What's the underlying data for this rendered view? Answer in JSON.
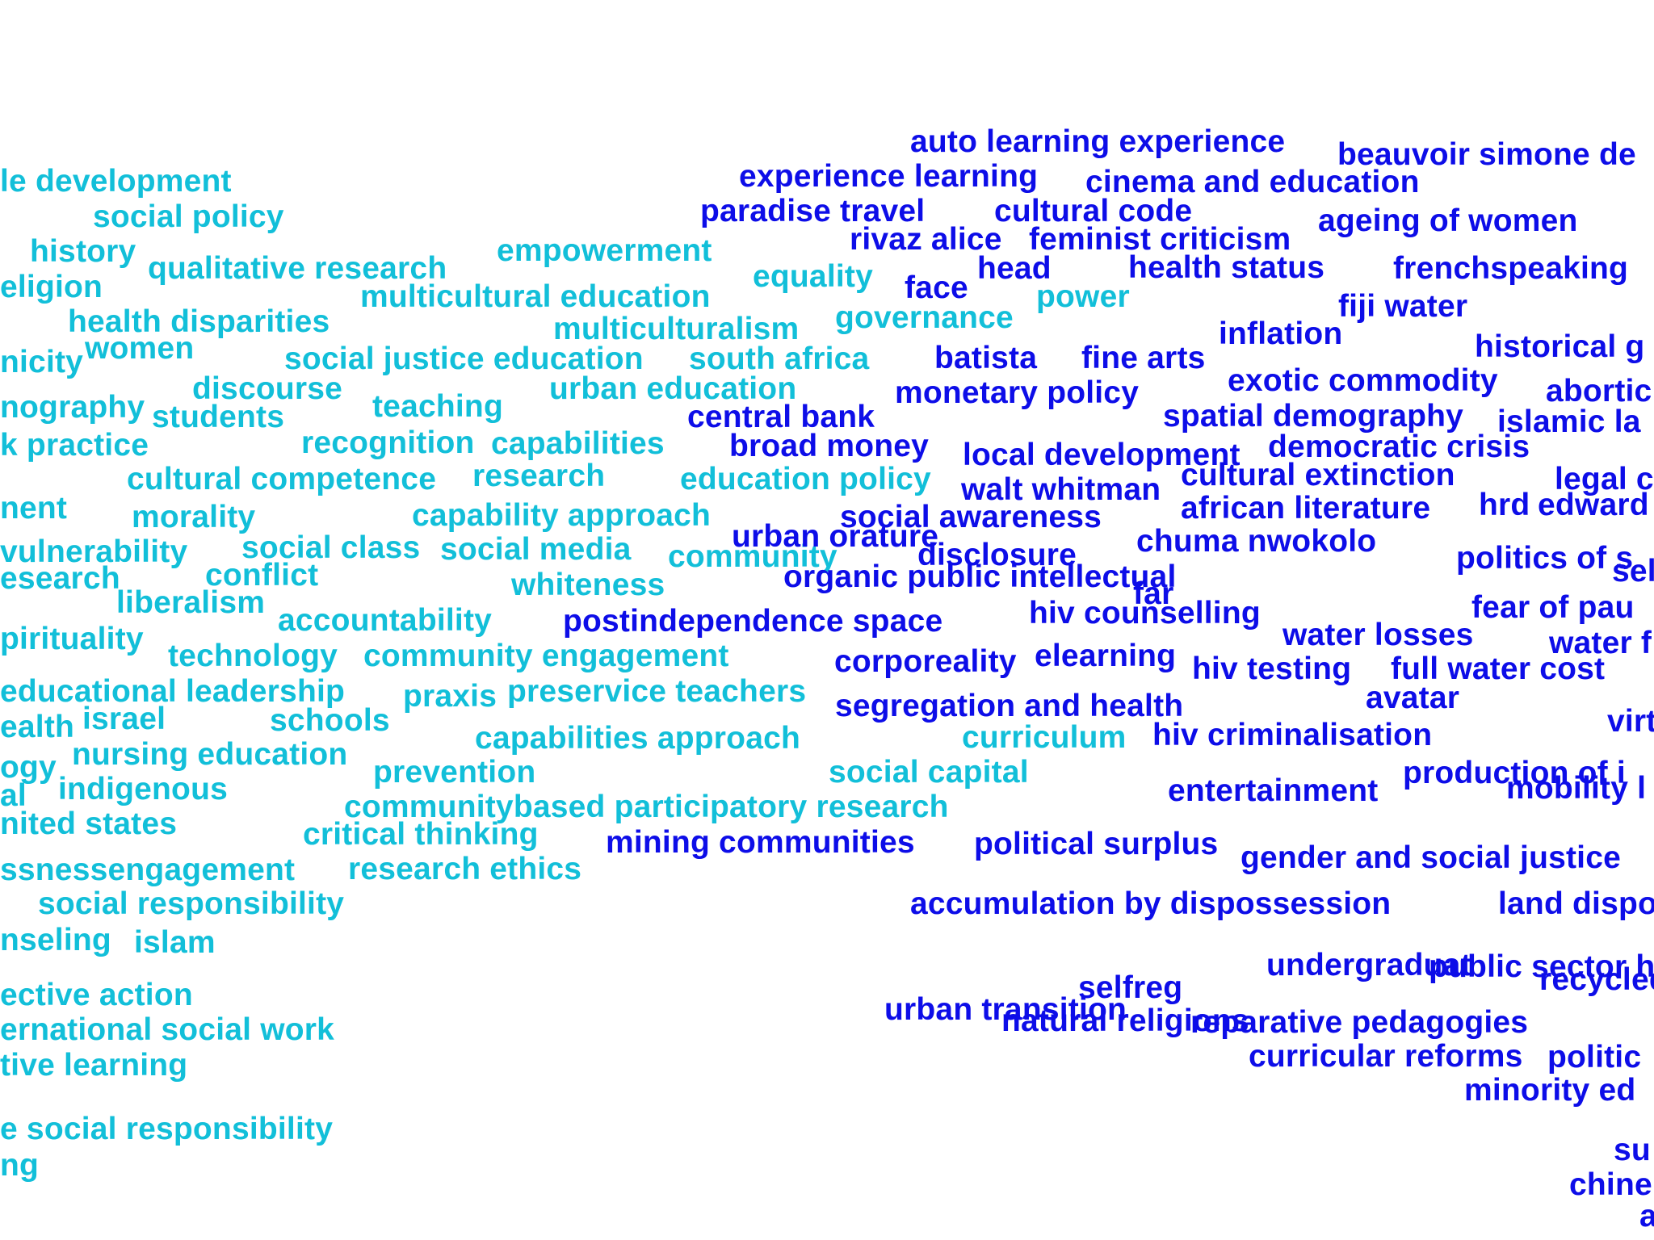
{
  "colors": {
    "cluster_a": "#12bfd9",
    "cluster_b": "#0d0de8"
  },
  "words": [
    {
      "text": "le development",
      "c": "a"
    },
    {
      "text": "social policy",
      "c": "a"
    },
    {
      "text": "history",
      "c": "a"
    },
    {
      "text": "qualitative research",
      "c": "a"
    },
    {
      "text": "empowerment",
      "c": "a"
    },
    {
      "text": "eligion",
      "c": "a"
    },
    {
      "text": "multicultural education",
      "c": "a"
    },
    {
      "text": "equality",
      "c": "a"
    },
    {
      "text": "health disparities",
      "c": "a"
    },
    {
      "text": "women",
      "c": "a"
    },
    {
      "text": "multiculturalism",
      "c": "a"
    },
    {
      "text": "governance",
      "c": "a"
    },
    {
      "text": "power",
      "c": "a"
    },
    {
      "text": "nicity",
      "c": "a"
    },
    {
      "text": "social justice education",
      "c": "a"
    },
    {
      "text": "south africa",
      "c": "a"
    },
    {
      "text": "discourse",
      "c": "a"
    },
    {
      "text": "urban education",
      "c": "a"
    },
    {
      "text": "nography",
      "c": "a"
    },
    {
      "text": "teaching",
      "c": "a"
    },
    {
      "text": "students",
      "c": "a"
    },
    {
      "text": "recognition",
      "c": "a"
    },
    {
      "text": "capabilities",
      "c": "a"
    },
    {
      "text": "k practice",
      "c": "a"
    },
    {
      "text": "cultural competence",
      "c": "a"
    },
    {
      "text": "research",
      "c": "a"
    },
    {
      "text": "education policy",
      "c": "a"
    },
    {
      "text": "nent",
      "c": "a"
    },
    {
      "text": "morality",
      "c": "a"
    },
    {
      "text": "capability approach",
      "c": "a"
    },
    {
      "text": "vulnerability",
      "c": "a"
    },
    {
      "text": "social class",
      "c": "a"
    },
    {
      "text": "social media",
      "c": "a"
    },
    {
      "text": "community",
      "c": "a"
    },
    {
      "text": "esearch",
      "c": "a"
    },
    {
      "text": "conflict",
      "c": "a"
    },
    {
      "text": "whiteness",
      "c": "a"
    },
    {
      "text": "liberalism",
      "c": "a"
    },
    {
      "text": "accountability",
      "c": "a"
    },
    {
      "text": "pirituality",
      "c": "a"
    },
    {
      "text": "technology",
      "c": "a"
    },
    {
      "text": "community engagement",
      "c": "a"
    },
    {
      "text": "educational leadership",
      "c": "a"
    },
    {
      "text": "praxis",
      "c": "a"
    },
    {
      "text": "preservice teachers",
      "c": "a"
    },
    {
      "text": "ealth",
      "c": "a"
    },
    {
      "text": "israel",
      "c": "a"
    },
    {
      "text": "schools",
      "c": "a"
    },
    {
      "text": "capabilities approach",
      "c": "a"
    },
    {
      "text": "curriculum",
      "c": "a"
    },
    {
      "text": "ogy",
      "c": "a"
    },
    {
      "text": "nursing education",
      "c": "a"
    },
    {
      "text": "prevention",
      "c": "a"
    },
    {
      "text": "social capital",
      "c": "a"
    },
    {
      "text": "al",
      "c": "a"
    },
    {
      "text": "indigenous",
      "c": "a"
    },
    {
      "text": "communitybased participatory research",
      "c": "a"
    },
    {
      "text": "nited states",
      "c": "a"
    },
    {
      "text": "critical thinking",
      "c": "a"
    },
    {
      "text": "ssnessengagement",
      "c": "a"
    },
    {
      "text": "research ethics",
      "c": "a"
    },
    {
      "text": "social responsibility",
      "c": "a"
    },
    {
      "text": "nseling",
      "c": "a"
    },
    {
      "text": "islam",
      "c": "a"
    },
    {
      "text": "ective action",
      "c": "a"
    },
    {
      "text": "ernational social work",
      "c": "a"
    },
    {
      "text": "tive learning",
      "c": "a"
    },
    {
      "text": "e social responsibility",
      "c": "a"
    },
    {
      "text": "ng",
      "c": "a"
    },
    {
      "text": "auto learning experience",
      "c": "b"
    },
    {
      "text": "beauvoir simone de",
      "c": "b"
    },
    {
      "text": "experience learning",
      "c": "b"
    },
    {
      "text": "cinema and education",
      "c": "b"
    },
    {
      "text": "paradise travel",
      "c": "b"
    },
    {
      "text": "cultural code",
      "c": "b"
    },
    {
      "text": "rivaz alice",
      "c": "b"
    },
    {
      "text": "feminist criticism",
      "c": "b"
    },
    {
      "text": "ageing of women",
      "c": "b"
    },
    {
      "text": "head",
      "c": "b"
    },
    {
      "text": "health status",
      "c": "b"
    },
    {
      "text": "face",
      "c": "b"
    },
    {
      "text": "frenchspeaking",
      "c": "b"
    },
    {
      "text": "fiji water",
      "c": "b"
    },
    {
      "text": "inflation",
      "c": "b"
    },
    {
      "text": "batista",
      "c": "b"
    },
    {
      "text": "fine arts",
      "c": "b"
    },
    {
      "text": "historical g",
      "c": "b"
    },
    {
      "text": "exotic commodity",
      "c": "b"
    },
    {
      "text": "monetary policy",
      "c": "b"
    },
    {
      "text": "abortic",
      "c": "b"
    },
    {
      "text": "central bank",
      "c": "b"
    },
    {
      "text": "spatial demography",
      "c": "b"
    },
    {
      "text": "islamic la",
      "c": "b"
    },
    {
      "text": "broad money",
      "c": "b"
    },
    {
      "text": "local development",
      "c": "b"
    },
    {
      "text": "democratic crisis",
      "c": "b"
    },
    {
      "text": "walt whitman",
      "c": "b"
    },
    {
      "text": "cultural extinction",
      "c": "b"
    },
    {
      "text": "legal c",
      "c": "b"
    },
    {
      "text": "social awareness",
      "c": "b"
    },
    {
      "text": "african literature",
      "c": "b"
    },
    {
      "text": "hrd",
      "c": "b"
    },
    {
      "text": "edward",
      "c": "b"
    },
    {
      "text": "urban orature",
      "c": "b"
    },
    {
      "text": "disclosure",
      "c": "b"
    },
    {
      "text": "chuma nwokolo",
      "c": "b"
    },
    {
      "text": "politics of s",
      "c": "b"
    },
    {
      "text": "selfimmolation",
      "c": "b"
    },
    {
      "text": "organic public intellectual",
      "c": "b"
    },
    {
      "text": "far",
      "c": "b"
    },
    {
      "text": "postindependence space",
      "c": "b"
    },
    {
      "text": "hiv counselling",
      "c": "b"
    },
    {
      "text": "fear of pau",
      "c": "b"
    },
    {
      "text": "water losses",
      "c": "b"
    },
    {
      "text": "water f",
      "c": "b"
    },
    {
      "text": "corporeality",
      "c": "b"
    },
    {
      "text": "elearning",
      "c": "b"
    },
    {
      "text": "hiv testing",
      "c": "b"
    },
    {
      "text": "full water cost",
      "c": "b"
    },
    {
      "text": "avatar",
      "c": "b"
    },
    {
      "text": "segregation and health",
      "c": "b"
    },
    {
      "text": "virt",
      "c": "b"
    },
    {
      "text": "hiv criminalisation",
      "c": "b"
    },
    {
      "text": "production of i",
      "c": "b"
    },
    {
      "text": "entertainment",
      "c": "b"
    },
    {
      "text": "mobility l",
      "c": "b"
    },
    {
      "text": "mining communities",
      "c": "b"
    },
    {
      "text": "political surplus",
      "c": "b"
    },
    {
      "text": "gender and social justice",
      "c": "b"
    },
    {
      "text": "accumulation by dispossession",
      "c": "b"
    },
    {
      "text": "land dispo",
      "c": "b"
    },
    {
      "text": "public sector healthcare services",
      "c": "b"
    },
    {
      "text": "undergraduat",
      "c": "b"
    },
    {
      "text": "recycled water",
      "c": "b"
    },
    {
      "text": "selfreg",
      "c": "b"
    },
    {
      "text": "natural religions",
      "c": "b"
    },
    {
      "text": "urban transition",
      "c": "b"
    },
    {
      "text": "reparative pedagogies",
      "c": "b"
    },
    {
      "text": "curricular reforms",
      "c": "b"
    },
    {
      "text": "politic",
      "c": "b"
    },
    {
      "text": "minority ed",
      "c": "b"
    },
    {
      "text": "su",
      "c": "b"
    },
    {
      "text": "chine",
      "c": "b"
    },
    {
      "text": "a",
      "c": "b"
    }
  ]
}
